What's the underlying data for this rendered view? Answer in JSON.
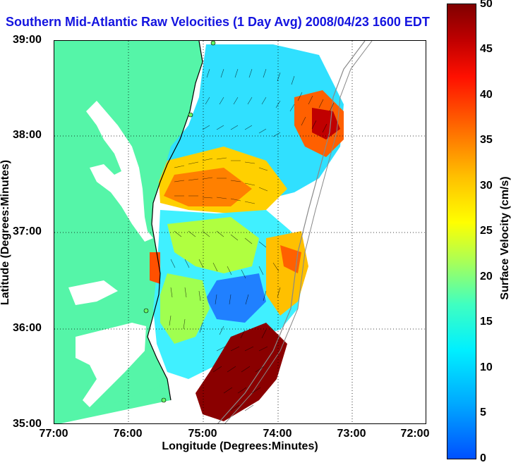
{
  "title": "Southern Mid-Atlantic Raw Velocities (1 Day Avg) 2008/04/23 1600 EDT",
  "axes": {
    "xlabel": "Longitude (Degrees:Minutes)",
    "ylabel": "Latitude (Degrees:Minutes)",
    "x_ticks": [
      "77:00",
      "76:00",
      "75:00",
      "74:00",
      "73:00",
      "72:00"
    ],
    "y_ticks": [
      "39:00",
      "38:00",
      "37:00",
      "36:00",
      "35:00"
    ],
    "grid": "dotted"
  },
  "colorbar": {
    "label": "Surface Velocity (cm/s)",
    "ticks": [
      "50",
      "45",
      "40",
      "35",
      "30",
      "25",
      "20",
      "15",
      "10",
      "5",
      "0"
    ],
    "range": [
      0,
      50
    ],
    "colors": {
      "land": "#55f5a8",
      "low": "#0050ff",
      "mid": "#ffff00",
      "high": "#800000"
    }
  },
  "map": {
    "region": "Southern Mid-Atlantic Bight",
    "lon_range": [
      "77:00",
      "72:00"
    ],
    "lat_range": [
      "35:00",
      "39:00"
    ]
  }
}
